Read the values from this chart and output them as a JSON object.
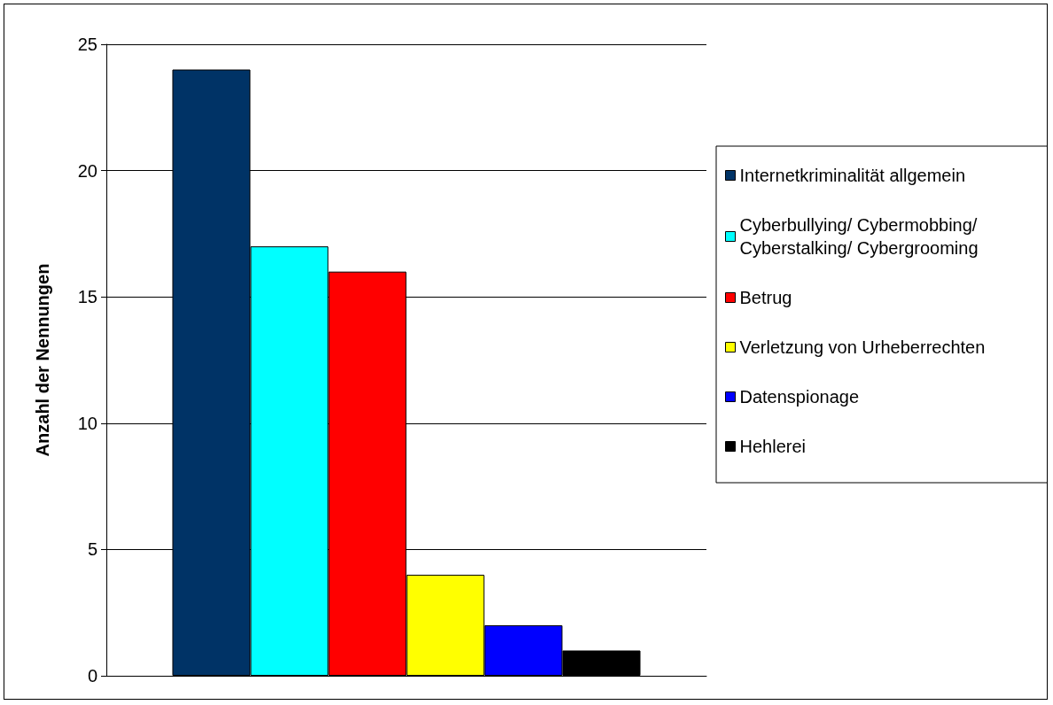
{
  "chart_data": {
    "type": "bar",
    "ylabel": "Anzahl der Nennungen",
    "categories": [
      null
    ],
    "series": [
      {
        "name": "Internetkriminalität allgemein",
        "color": "#003366",
        "values": [
          24
        ]
      },
      {
        "name": "Cyberbullying/ Cybermobbing/ Cyberstalking/ Cybergrooming",
        "color": "#00ffff",
        "values": [
          17
        ]
      },
      {
        "name": "Betrug",
        "color": "#ff0000",
        "values": [
          16
        ]
      },
      {
        "name": "Verletzung von Urheberrechten",
        "color": "#ffff00",
        "values": [
          4
        ]
      },
      {
        "name": "Datenspionage",
        "color": "#0000ff",
        "values": [
          2
        ]
      },
      {
        "name": "Hehlerei",
        "color": "#000000",
        "values": [
          1
        ]
      }
    ],
    "ylim": [
      0,
      25
    ],
    "yticks": [
      0,
      5,
      10,
      15,
      20,
      25
    ],
    "grid": "y",
    "legend": "right"
  }
}
